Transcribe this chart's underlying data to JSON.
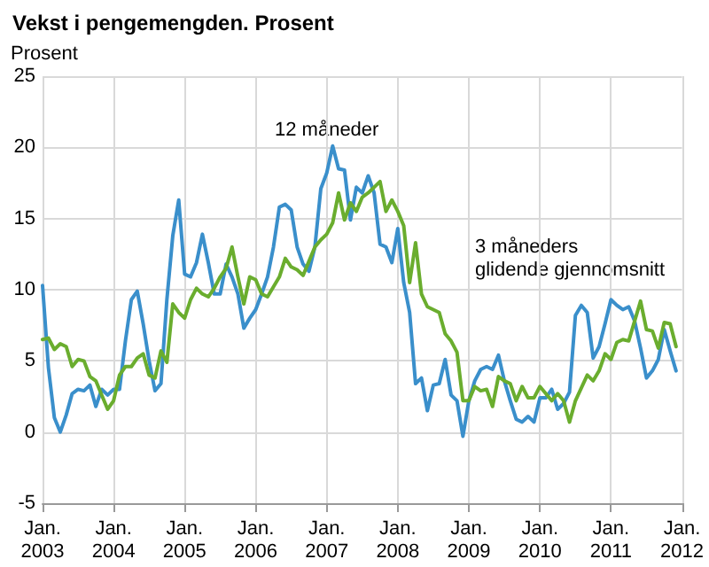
{
  "chart_data": {
    "type": "line",
    "title": "Vekst i pengemengden. Prosent",
    "ylabel": "Prosent",
    "x": [
      "2003-01",
      "2003-02",
      "2003-03",
      "2003-04",
      "2003-05",
      "2003-06",
      "2003-07",
      "2003-08",
      "2003-09",
      "2003-10",
      "2003-11",
      "2003-12",
      "2004-01",
      "2004-02",
      "2004-03",
      "2004-04",
      "2004-05",
      "2004-06",
      "2004-07",
      "2004-08",
      "2004-09",
      "2004-10",
      "2004-11",
      "2004-12",
      "2005-01",
      "2005-02",
      "2005-03",
      "2005-04",
      "2005-05",
      "2005-06",
      "2005-07",
      "2005-08",
      "2005-09",
      "2005-10",
      "2005-11",
      "2005-12",
      "2006-01",
      "2006-02",
      "2006-03",
      "2006-04",
      "2006-05",
      "2006-06",
      "2006-07",
      "2006-08",
      "2006-09",
      "2006-10",
      "2006-11",
      "2006-12",
      "2007-01",
      "2007-02",
      "2007-03",
      "2007-04",
      "2007-05",
      "2007-06",
      "2007-07",
      "2007-08",
      "2007-09",
      "2007-10",
      "2007-11",
      "2007-12",
      "2008-01",
      "2008-02",
      "2008-03",
      "2008-04",
      "2008-05",
      "2008-06",
      "2008-07",
      "2008-08",
      "2008-09",
      "2008-10",
      "2008-11",
      "2008-12",
      "2009-01",
      "2009-02",
      "2009-03",
      "2009-04",
      "2009-05",
      "2009-06",
      "2009-07",
      "2009-08",
      "2009-09",
      "2009-10",
      "2009-11",
      "2009-12",
      "2010-01",
      "2010-02",
      "2010-03",
      "2010-04",
      "2010-05",
      "2010-06",
      "2010-07",
      "2010-08",
      "2010-09",
      "2010-10",
      "2010-11",
      "2010-12",
      "2011-01",
      "2011-02",
      "2011-03",
      "2011-04",
      "2011-05",
      "2011-06",
      "2011-07",
      "2011-08",
      "2011-09",
      "2011-10",
      "2011-11",
      "2011-12"
    ],
    "series": [
      {
        "name": "12 måneder",
        "color": "#3a8fcb",
        "values": [
          10.3,
          4.5,
          1.0,
          0.0,
          1.2,
          2.7,
          3.0,
          2.9,
          3.3,
          1.8,
          3.0,
          2.6,
          3.0,
          3.0,
          6.4,
          9.3,
          9.9,
          7.6,
          5.0,
          2.9,
          3.4,
          9.3,
          13.8,
          16.3,
          11.1,
          10.9,
          11.9,
          13.9,
          11.9,
          9.7,
          9.7,
          11.8,
          10.9,
          9.7,
          7.3,
          8.0,
          8.6,
          9.7,
          10.9,
          13.0,
          15.8,
          16.0,
          15.6,
          13.0,
          11.8,
          11.3,
          13.0,
          17.1,
          18.2,
          20.1,
          18.5,
          18.4,
          14.9,
          17.2,
          16.8,
          18.0,
          16.8,
          13.2,
          13.0,
          11.9,
          14.3,
          10.5,
          8.4,
          3.4,
          3.8,
          1.5,
          3.3,
          3.4,
          5.1,
          2.6,
          2.2,
          -0.3,
          2.2,
          3.6,
          4.4,
          4.6,
          4.4,
          5.4,
          3.6,
          2.2,
          0.9,
          0.7,
          1.1,
          0.7,
          2.4,
          2.4,
          3.0,
          1.6,
          2.0,
          2.8,
          8.2,
          8.9,
          8.4,
          5.2,
          6.0,
          7.6,
          9.3,
          8.9,
          8.6,
          8.8,
          7.8,
          5.9,
          3.8,
          4.3,
          5.1,
          7.2,
          5.7,
          4.3
        ]
      },
      {
        "name": "3 måneders glidende gjennomsnitt",
        "color": "#6aad2e",
        "values": [
          6.5,
          6.6,
          5.8,
          6.2,
          6.0,
          4.6,
          5.1,
          5.0,
          3.9,
          3.6,
          2.6,
          1.6,
          2.2,
          4.0,
          4.6,
          4.6,
          5.2,
          5.5,
          4.0,
          3.8,
          5.7,
          4.9,
          9.0,
          8.4,
          8.0,
          9.3,
          10.1,
          9.7,
          9.5,
          10.1,
          10.9,
          11.5,
          13.0,
          10.9,
          9.0,
          10.9,
          10.7,
          9.7,
          9.5,
          10.2,
          10.9,
          12.2,
          11.6,
          11.4,
          11.0,
          12.0,
          13.0,
          13.5,
          13.9,
          14.7,
          16.8,
          14.9,
          16.1,
          15.5,
          16.5,
          16.8,
          17.2,
          17.6,
          15.5,
          16.3,
          15.5,
          14.5,
          10.5,
          13.3,
          9.7,
          8.8,
          8.6,
          8.4,
          6.9,
          6.4,
          5.6,
          2.2,
          2.2,
          3.2,
          2.9,
          3.0,
          1.8,
          3.9,
          3.6,
          3.4,
          2.2,
          3.2,
          2.4,
          2.4,
          3.2,
          2.7,
          2.2,
          2.7,
          2.2,
          0.7,
          2.2,
          3.1,
          4.0,
          3.6,
          4.3,
          5.5,
          5.1,
          6.3,
          6.5,
          6.4,
          7.8,
          9.2,
          7.2,
          7.1,
          5.9,
          7.7,
          7.6,
          6.0
        ]
      }
    ],
    "xlim": [
      "2003-01",
      "2012-01"
    ],
    "xticks": [
      {
        "value": "2003-01",
        "label": "Jan.\n2003"
      },
      {
        "value": "2004-01",
        "label": "Jan.\n2004"
      },
      {
        "value": "2005-01",
        "label": "Jan.\n2005"
      },
      {
        "value": "2006-01",
        "label": "Jan.\n2006"
      },
      {
        "value": "2007-01",
        "label": "Jan.\n2007"
      },
      {
        "value": "2008-01",
        "label": "Jan.\n2008"
      },
      {
        "value": "2009-01",
        "label": "Jan.\n2009"
      },
      {
        "value": "2010-01",
        "label": "Jan.\n2010"
      },
      {
        "value": "2011-01",
        "label": "Jan.\n2011"
      },
      {
        "value": "2012-01",
        "label": "Jan.\n2012"
      }
    ],
    "ylim": [
      -5,
      25
    ],
    "yticks": [
      -5,
      0,
      5,
      10,
      15,
      20,
      25
    ],
    "grid": true,
    "legend": false,
    "marker": "none",
    "line_style": "solid"
  }
}
